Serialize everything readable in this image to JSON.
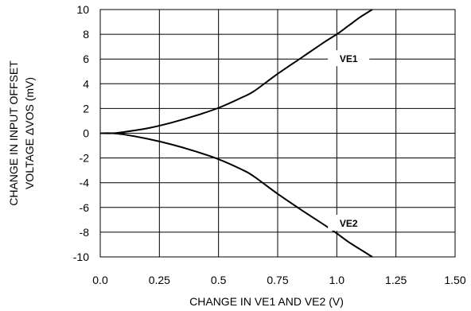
{
  "chart_data": {
    "type": "line",
    "title": "",
    "xlabel": "CHANGE IN VE1 AND VE2 (V)",
    "ylabel_lines": [
      "CHANGE  IN INPUT OFFSET",
      "VOLTAGE  ΔVOS (mV)"
    ],
    "xlim": [
      0.0,
      1.5
    ],
    "ylim": [
      -10,
      10
    ],
    "x_ticks": [
      0.0,
      0.25,
      0.5,
      0.75,
      1.0,
      1.25,
      1.5
    ],
    "x_tick_labels": [
      "0.0",
      "0.25",
      "0.5",
      "0.75",
      "1.0",
      "1.25",
      "1.50"
    ],
    "y_ticks": [
      10,
      8,
      6,
      4,
      2,
      0,
      -2,
      -4,
      -6,
      -8,
      -10
    ],
    "y_tick_labels": [
      "10",
      "8",
      "6",
      "4",
      "2",
      "0",
      "-2",
      "-4",
      "-6",
      "-8",
      "-10"
    ],
    "grid": true,
    "series": [
      {
        "name": "VE1",
        "x": [
          0.0,
          0.05,
          0.1,
          0.2,
          0.3,
          0.4,
          0.5,
          0.6,
          0.65,
          0.75,
          0.85,
          0.95,
          1.0,
          1.05,
          1.1,
          1.15
        ],
        "y": [
          0.0,
          0.0,
          0.1,
          0.4,
          0.85,
          1.4,
          2.05,
          2.9,
          3.4,
          4.8,
          6.1,
          7.4,
          8.0,
          8.7,
          9.4,
          10.0
        ]
      },
      {
        "name": "VE2",
        "x": [
          0.0,
          0.05,
          0.1,
          0.2,
          0.3,
          0.4,
          0.5,
          0.6,
          0.65,
          0.75,
          0.85,
          0.95,
          1.0,
          1.05,
          1.1,
          1.15
        ],
        "y": [
          0.0,
          0.0,
          -0.1,
          -0.45,
          -0.9,
          -1.45,
          -2.1,
          -2.95,
          -3.5,
          -4.9,
          -6.2,
          -7.45,
          -8.1,
          -8.8,
          -9.4,
          -10.0
        ]
      }
    ],
    "series_labels": [
      {
        "text": "VE1",
        "x": 1.05,
        "y": 6.0
      },
      {
        "text": "VE2",
        "x": 1.05,
        "y": -7.3
      }
    ]
  }
}
